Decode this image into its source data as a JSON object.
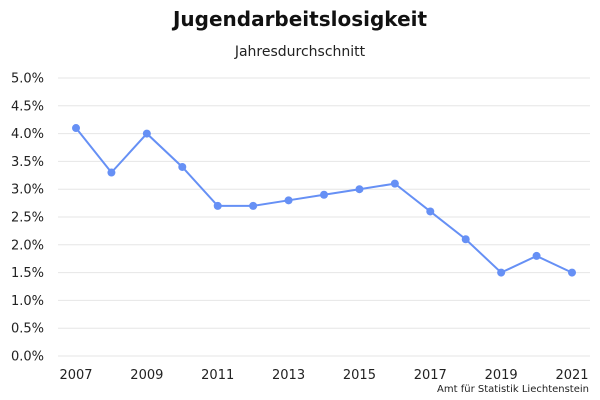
{
  "chart_data": {
    "type": "line",
    "title": "Jugendarbeitslosigkeit",
    "subtitle": "Jahresdurchschnitt",
    "source": "Amt für Statistik Liechtenstein",
    "x": [
      2007,
      2008,
      2009,
      2010,
      2011,
      2012,
      2013,
      2014,
      2015,
      2016,
      2017,
      2018,
      2019,
      2020,
      2021
    ],
    "series": [
      {
        "values": [
          4.1,
          3.3,
          4.0,
          3.4,
          2.7,
          2.7,
          2.8,
          2.9,
          3.0,
          3.1,
          2.6,
          2.1,
          1.5,
          1.8,
          1.5
        ]
      }
    ],
    "ylim": [
      0,
      5
    ],
    "y_ticks": [
      "0.0%",
      "0.5%",
      "1.0%",
      "1.5%",
      "2.0%",
      "2.5%",
      "3.0%",
      "3.5%",
      "4.0%",
      "4.5%",
      "5.0%"
    ],
    "x_ticks": [
      "2007",
      "2009",
      "2011",
      "2013",
      "2015",
      "2017",
      "2019",
      "2021"
    ],
    "grid": true,
    "line_color": "#6690f5",
    "grid_color": "#e6e6e6"
  }
}
